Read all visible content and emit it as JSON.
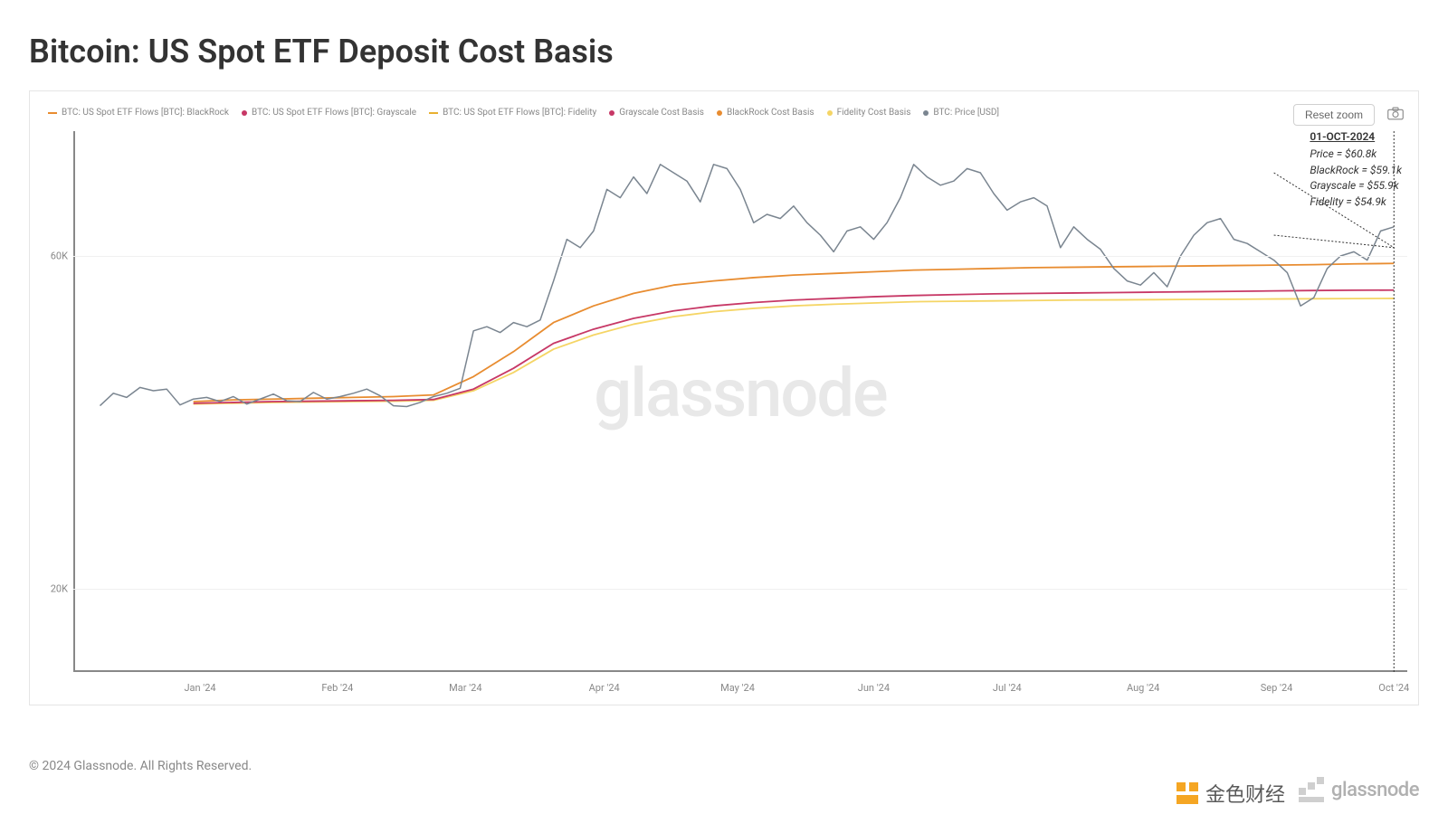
{
  "title": "Bitcoin: US Spot ETF Deposit Cost Basis",
  "copyright": "© 2024 Glassnode. All Rights Reserved.",
  "watermark": "glassnode",
  "brand_text": "glassnode",
  "overlay_text": "金色财经",
  "reset_zoom_label": "Reset zoom",
  "chart": {
    "type": "line",
    "background_color": "#ffffff",
    "grid_color": "#f0f0f0",
    "axis_color": "#888888",
    "label_fontsize": 11,
    "label_color": "#888888",
    "y_axis": {
      "min": 10000,
      "max": 75000,
      "ticks": [
        {
          "value": 20000,
          "label": "20K"
        },
        {
          "value": 60000,
          "label": "60K"
        }
      ]
    },
    "x_axis": {
      "labels": [
        "Jan '24",
        "Feb '24",
        "Mar '24",
        "Apr '24",
        "May '24",
        "Jun '24",
        "Jul '24",
        "Aug '24",
        "Sep '24",
        "Oct '24"
      ],
      "label_positions_pct": [
        9.5,
        19.8,
        29.4,
        39.8,
        49.8,
        60.0,
        70.0,
        80.2,
        90.2,
        99.0
      ]
    },
    "legend": [
      {
        "label": "BTC: US Spot ETF Flows [BTC]: BlackRock",
        "color": "#e88c30",
        "style": "line"
      },
      {
        "label": "BTC: US Spot ETF Flows [BTC]: Grayscale",
        "color": "#c73866",
        "style": "dot"
      },
      {
        "label": "BTC: US Spot ETF Flows [BTC]: Fidelity",
        "color": "#e8b030",
        "style": "line"
      },
      {
        "label": "Grayscale Cost Basis",
        "color": "#c73866",
        "style": "dot"
      },
      {
        "label": "BlackRock Cost Basis",
        "color": "#e88c30",
        "style": "dot"
      },
      {
        "label": "Fidelity Cost Basis",
        "color": "#f5d565",
        "style": "dot"
      },
      {
        "label": "BTC: Price [USD]",
        "color": "#7a8590",
        "style": "dot"
      }
    ],
    "annotation": {
      "date": "01-OCT-2024",
      "lines": [
        "Price = $60.8k",
        "BlackRock = $59.1k",
        "Grayscale = $55.9k",
        "Fidelity = $54.9k"
      ]
    },
    "series": {
      "price": {
        "color": "#7a8590",
        "stroke_width": 1.5,
        "data_x_pct": [
          2,
          3,
          4,
          5,
          6,
          7,
          8,
          9,
          10,
          11,
          12,
          13,
          14,
          15,
          16,
          17,
          18,
          19,
          20,
          21,
          22,
          23,
          24,
          25,
          26,
          27,
          28,
          29,
          30,
          31,
          32,
          33,
          34,
          35,
          36,
          37,
          38,
          39,
          40,
          41,
          42,
          43,
          44,
          45,
          46,
          47,
          48,
          49,
          50,
          51,
          52,
          53,
          54,
          55,
          56,
          57,
          58,
          59,
          60,
          61,
          62,
          63,
          64,
          65,
          66,
          67,
          68,
          69,
          70,
          71,
          72,
          73,
          74,
          75,
          76,
          77,
          78,
          79,
          80,
          81,
          82,
          83,
          84,
          85,
          86,
          87,
          88,
          89,
          90,
          91,
          92,
          93,
          94,
          95,
          96,
          97,
          98,
          99
        ],
        "data_y": [
          42000,
          43500,
          43000,
          44200,
          43800,
          44000,
          42100,
          42800,
          43000,
          42500,
          43100,
          42200,
          42800,
          43400,
          42600,
          42500,
          43600,
          42800,
          43100,
          43500,
          44000,
          43200,
          42000,
          41900,
          42400,
          43100,
          43500,
          44100,
          51000,
          51500,
          50800,
          52000,
          51500,
          52300,
          57000,
          62000,
          61000,
          63000,
          68000,
          67000,
          69500,
          67500,
          71000,
          70000,
          69000,
          66500,
          71000,
          70500,
          68000,
          64000,
          65000,
          64500,
          66000,
          64000,
          62500,
          60500,
          63000,
          63500,
          62000,
          64000,
          67000,
          71000,
          69500,
          68500,
          69000,
          70500,
          70000,
          67500,
          65500,
          66500,
          67000,
          66000,
          61000,
          63500,
          62000,
          60800,
          58500,
          57000,
          56500,
          58000,
          56300,
          60000,
          62500,
          64000,
          64500,
          62000,
          61500,
          60500,
          59500,
          58000,
          54000,
          55000,
          58500,
          60000,
          60500,
          59500,
          63000,
          63500,
          62800,
          60800
        ]
      },
      "blackrock": {
        "color": "#e88c30",
        "stroke_width": 1.8,
        "data_x_pct": [
          9,
          12,
          15,
          18,
          21,
          24,
          27,
          30,
          33,
          36,
          39,
          42,
          45,
          48,
          51,
          54,
          57,
          60,
          63,
          66,
          69,
          72,
          75,
          78,
          81,
          84,
          87,
          90,
          93,
          96,
          99
        ],
        "data_y": [
          42500,
          42700,
          42800,
          42900,
          43000,
          43100,
          43300,
          45500,
          48500,
          52000,
          54000,
          55500,
          56500,
          57000,
          57400,
          57700,
          57900,
          58100,
          58300,
          58400,
          58500,
          58600,
          58650,
          58700,
          58750,
          58800,
          58850,
          58900,
          58950,
          59050,
          59100
        ]
      },
      "grayscale": {
        "color": "#c73866",
        "stroke_width": 1.8,
        "data_x_pct": [
          9,
          12,
          15,
          18,
          21,
          24,
          27,
          30,
          33,
          36,
          39,
          42,
          45,
          48,
          51,
          54,
          57,
          60,
          63,
          66,
          69,
          72,
          75,
          78,
          81,
          84,
          87,
          90,
          93,
          96,
          99
        ],
        "data_y": [
          42300,
          42400,
          42500,
          42550,
          42600,
          42650,
          42750,
          44000,
          46500,
          49500,
          51200,
          52500,
          53400,
          54000,
          54400,
          54700,
          54900,
          55100,
          55250,
          55350,
          55450,
          55500,
          55550,
          55600,
          55650,
          55700,
          55750,
          55800,
          55850,
          55880,
          55900
        ]
      },
      "fidelity": {
        "color": "#f5d565",
        "stroke_width": 1.8,
        "data_x_pct": [
          9,
          12,
          15,
          18,
          21,
          24,
          27,
          30,
          33,
          36,
          39,
          42,
          45,
          48,
          51,
          54,
          57,
          60,
          63,
          66,
          69,
          72,
          75,
          78,
          81,
          84,
          87,
          90,
          93,
          96,
          99
        ],
        "data_y": [
          42200,
          42300,
          42400,
          42450,
          42500,
          42550,
          42650,
          43800,
          46000,
          48800,
          50500,
          51800,
          52700,
          53300,
          53700,
          54000,
          54200,
          54350,
          54500,
          54550,
          54600,
          54650,
          54700,
          54720,
          54750,
          54780,
          54800,
          54830,
          54860,
          54880,
          54900
        ]
      }
    }
  }
}
